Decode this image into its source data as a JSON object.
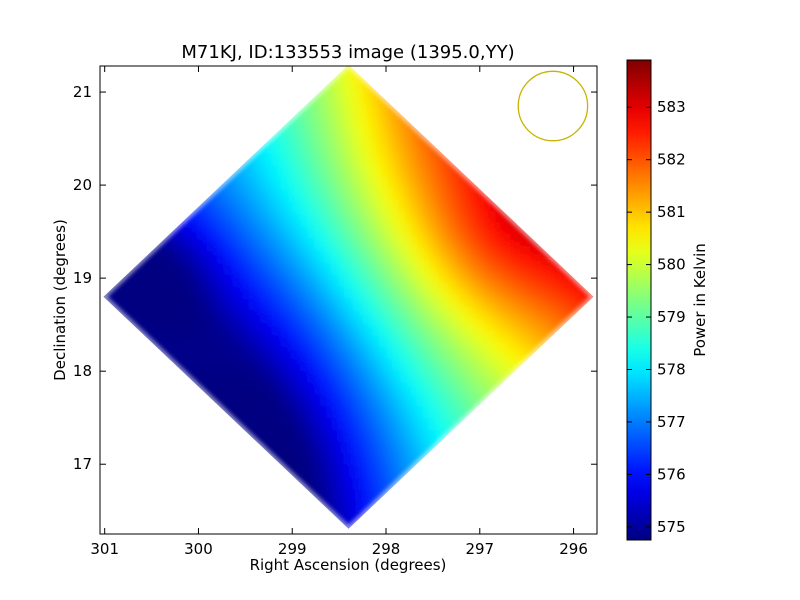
{
  "chart_data": {
    "type": "heatmap",
    "title": "M71KJ, ID:133553 image (1395.0,YY)",
    "xlabel": "Right Ascension (degrees)",
    "ylabel": "Declination (degrees)",
    "xlim": [
      301.05,
      295.75
    ],
    "ylim": [
      16.25,
      21.28
    ],
    "x_ticks": [
      "301",
      "300",
      "299",
      "298",
      "297",
      "296"
    ],
    "y_ticks": [
      "17",
      "18",
      "19",
      "20",
      "21"
    ],
    "colorbar": {
      "label": "Power in Kelvin",
      "range": [
        574.75,
        583.9
      ],
      "colormap": "jet",
      "ticks": [
        "575",
        "576",
        "577",
        "578",
        "579",
        "580",
        "581",
        "582",
        "583"
      ]
    },
    "field": {
      "shape": "diamond",
      "center_ra": 298.4,
      "center_dec": 18.8,
      "value_range": [
        574.9,
        583.8
      ],
      "gradient_direction": "low toward higher RA (east), high toward lower RA (west)"
    },
    "beam": {
      "ra": 296.22,
      "dec": 20.85,
      "radius_deg": 0.37,
      "color": "#c8b400"
    }
  }
}
